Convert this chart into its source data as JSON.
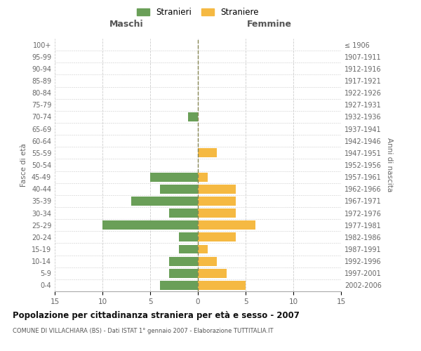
{
  "age_groups": [
    "0-4",
    "5-9",
    "10-14",
    "15-19",
    "20-24",
    "25-29",
    "30-34",
    "35-39",
    "40-44",
    "45-49",
    "50-54",
    "55-59",
    "60-64",
    "65-69",
    "70-74",
    "75-79",
    "80-84",
    "85-89",
    "90-94",
    "95-99",
    "100+"
  ],
  "birth_years": [
    "2002-2006",
    "1997-2001",
    "1992-1996",
    "1987-1991",
    "1982-1986",
    "1977-1981",
    "1972-1976",
    "1967-1971",
    "1962-1966",
    "1957-1961",
    "1952-1956",
    "1947-1951",
    "1942-1946",
    "1937-1941",
    "1932-1936",
    "1927-1931",
    "1922-1926",
    "1917-1921",
    "1912-1916",
    "1907-1911",
    "≤ 1906"
  ],
  "males": [
    4,
    3,
    3,
    2,
    2,
    10,
    3,
    7,
    4,
    5,
    0,
    0,
    0,
    0,
    1,
    0,
    0,
    0,
    0,
    0,
    0
  ],
  "females": [
    5,
    3,
    2,
    1,
    4,
    6,
    4,
    4,
    4,
    1,
    0,
    2,
    0,
    0,
    0,
    0,
    0,
    0,
    0,
    0,
    0
  ],
  "male_color": "#6a9f58",
  "female_color": "#f5b942",
  "background_color": "#ffffff",
  "grid_color": "#cccccc",
  "center_line_color": "#888855",
  "title": "Popolazione per cittadinanza straniera per età e sesso - 2007",
  "subtitle": "COMUNE DI VILLACHIARA (BS) - Dati ISTAT 1° gennaio 2007 - Elaborazione TUTTITALIA.IT",
  "xlabel_left": "Maschi",
  "xlabel_right": "Femmine",
  "ylabel_left": "Fasce di età",
  "ylabel_right": "Anni di nascita",
  "xlim": 15,
  "legend_stranieri": "Stranieri",
  "legend_straniere": "Straniere"
}
